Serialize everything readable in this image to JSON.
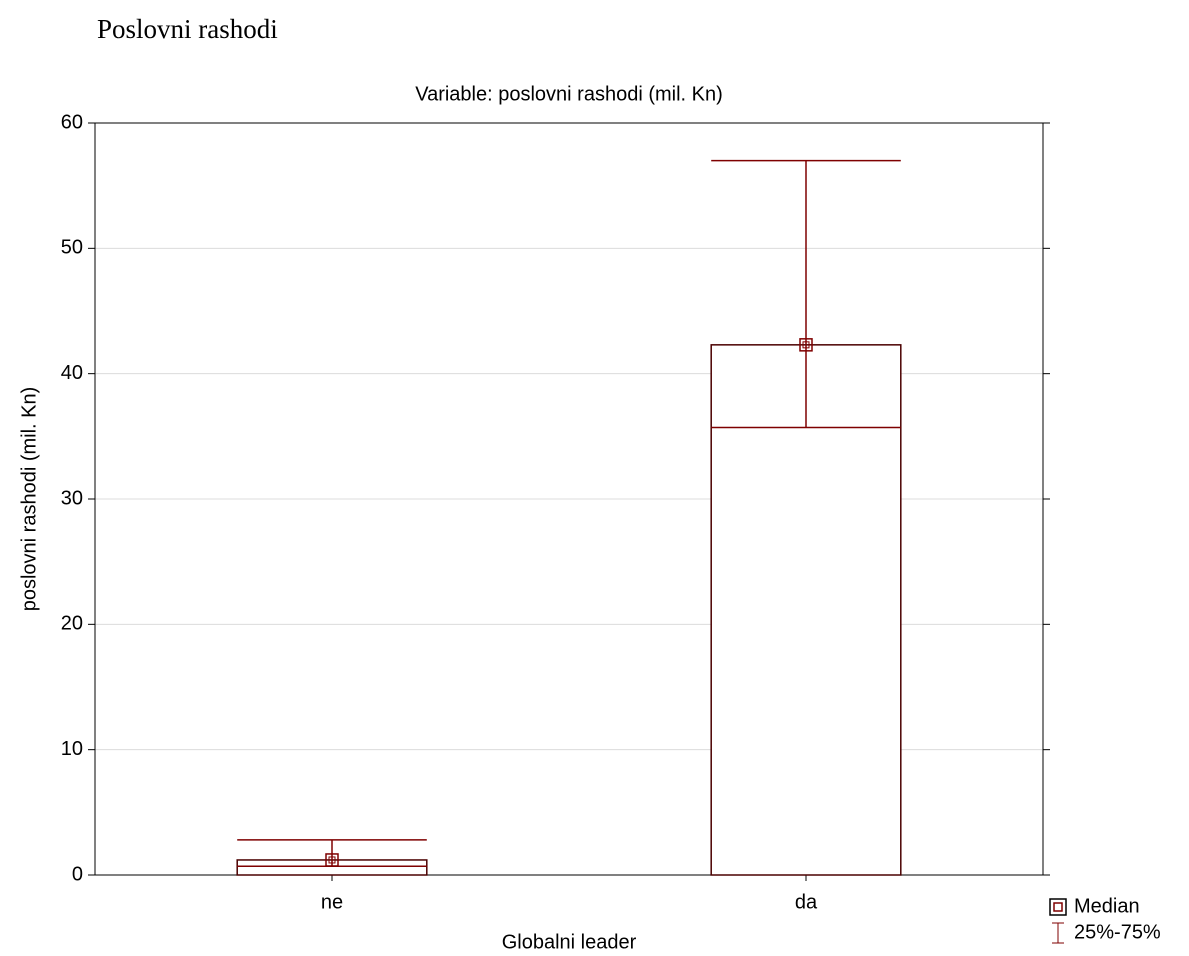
{
  "heading": "Poslovni rashodi",
  "chart_data": {
    "type": "box",
    "title": "Variable: poslovni rashodi (mil. Kn)",
    "x_label": "Globalni leader",
    "y_label": "poslovni rashodi (mil. Kn)",
    "categories": [
      "ne",
      "da"
    ],
    "series": [
      {
        "name": "Median",
        "color": "#7f0000",
        "values": [
          1.2,
          42.3
        ]
      },
      {
        "name": "25%-75%",
        "color": "#7f0000",
        "low": [
          0.7,
          35.7
        ],
        "high": [
          2.8,
          57.0
        ]
      }
    ],
    "ylim": [
      0,
      60
    ],
    "yticks": [
      0,
      10,
      20,
      30,
      40,
      50,
      60
    ],
    "grid": true,
    "legend": "bottom-right"
  }
}
